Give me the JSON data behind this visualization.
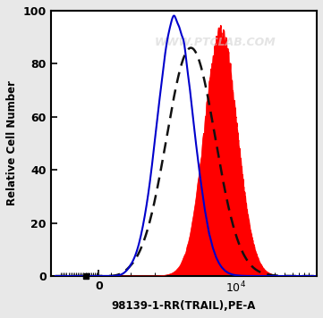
{
  "xlabel": "98139-1-RR(TRAIL),PE-A",
  "ylabel": "Relative Cell Number",
  "ylim": [
    0,
    100
  ],
  "yticks": [
    0,
    20,
    40,
    60,
    80,
    100
  ],
  "watermark": "WWW.PTCLAB.COM",
  "background_color": "#e8e8e8",
  "plot_bg_color": "#ffffff",
  "blue_line_color": "#0000cc",
  "dashed_line_color": "#111111",
  "red_fill_color": "#ff0000",
  "blue_peak_x": 1800,
  "blue_sigma": 0.22,
  "blue_height": 98,
  "dashed_peak_x": 2800,
  "dashed_sigma": 0.3,
  "dashed_height": 86,
  "red_peak_x": 6500,
  "red_sigma": 0.2,
  "red_height": 92,
  "xlim_left": -800,
  "xlim_right": 100000
}
